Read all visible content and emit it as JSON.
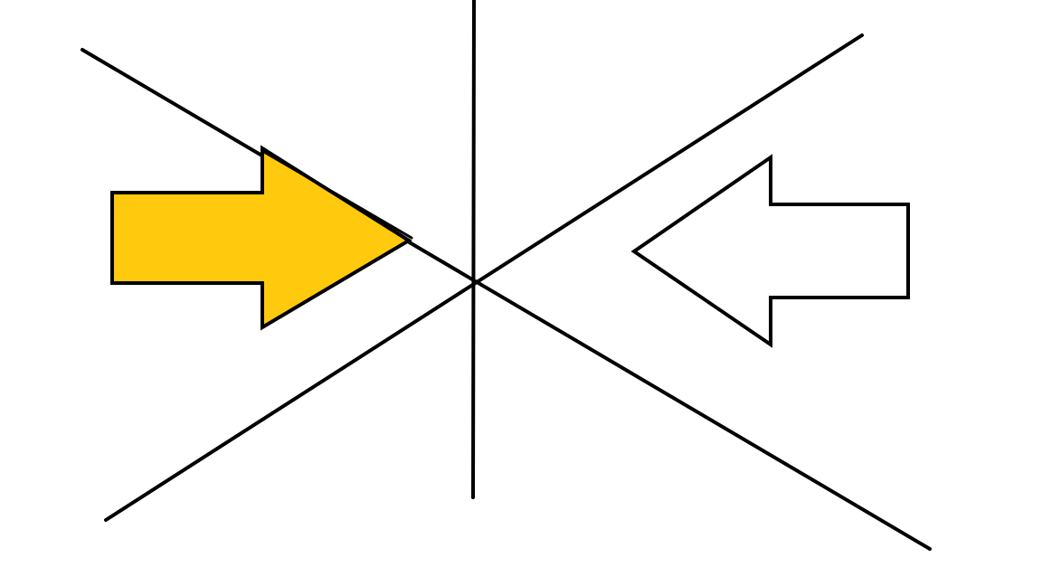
{
  "diagram": {
    "background_color": "#ffffff",
    "stroke_color": "#000000",
    "elements": {
      "vertical_line": {
        "name": "vertical-line"
      },
      "descending_line": {
        "name": "descending-diagonal-line"
      },
      "ascending_line": {
        "name": "ascending-diagonal-line"
      },
      "left_arrow": {
        "name": "right-pointing-arrow-icon",
        "direction": "right",
        "fill_color": "#ffc90e"
      },
      "right_arrow": {
        "name": "left-pointing-arrow-icon",
        "direction": "left",
        "fill_color": "#ffffff"
      }
    }
  }
}
